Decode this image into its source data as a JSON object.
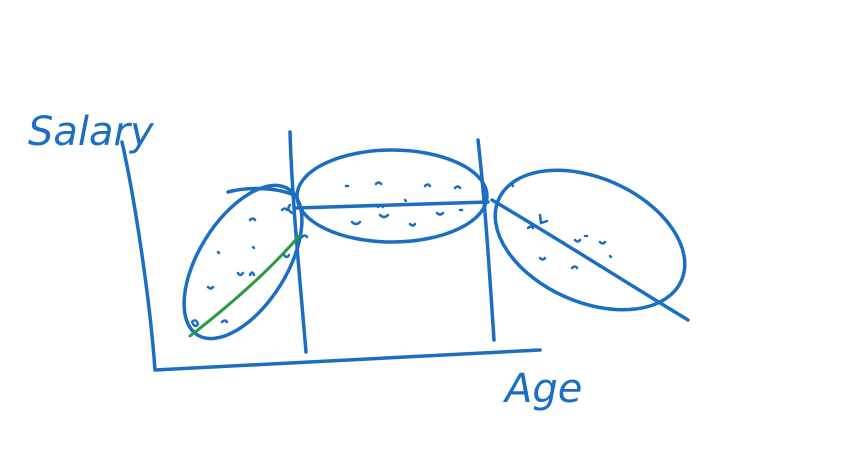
{
  "axes": {
    "y_label": "Salary",
    "x_label": "Age"
  }
}
